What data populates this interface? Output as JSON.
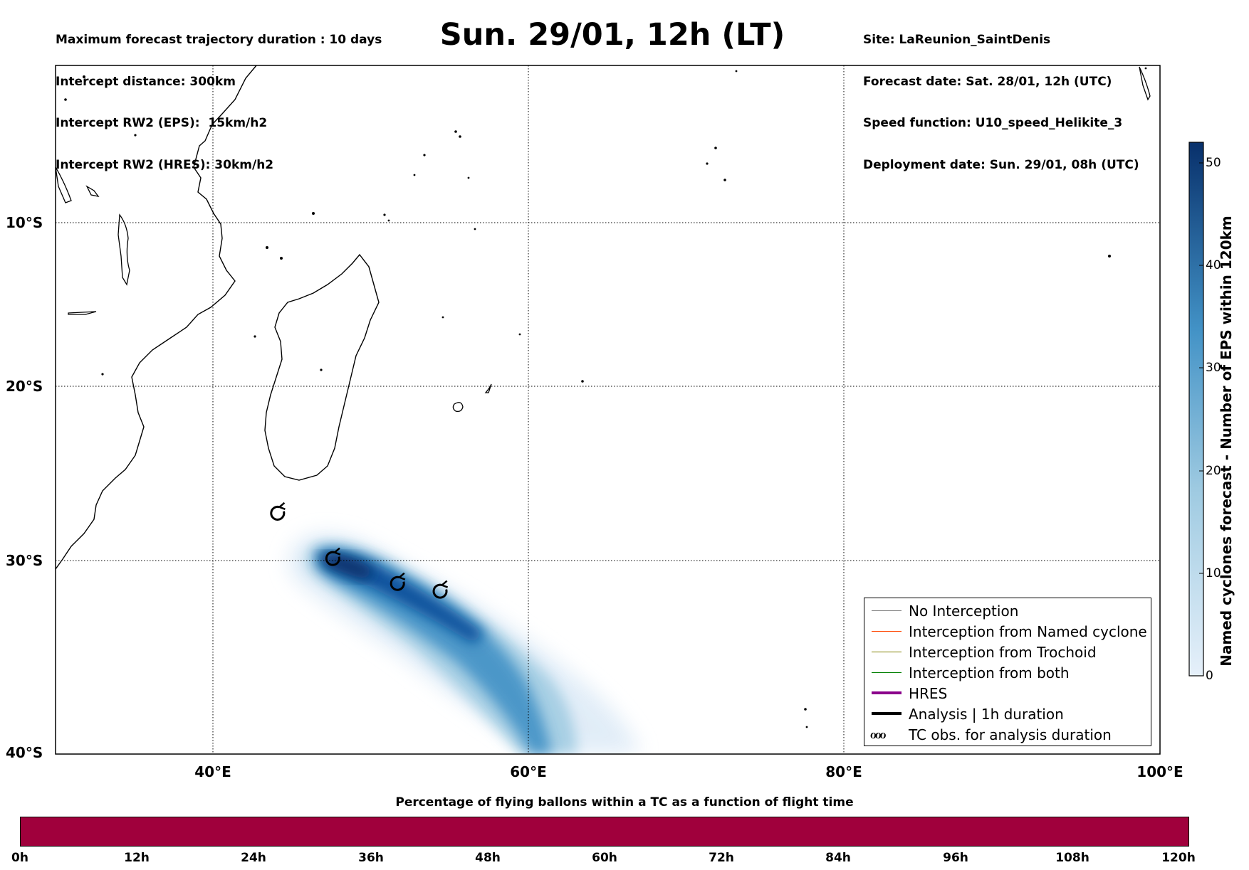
{
  "header_left": {
    "line1": "Maximum forecast trajectory duration : 10 days",
    "line2": "Intercept distance: 300km",
    "line3": "Intercept RW2 (EPS):  15km/h2",
    "line4": "Intercept RW2 (HRES): 30km/h2"
  },
  "title": "Sun. 29/01, 12h (LT)",
  "header_right": {
    "line1": "Site: LaReunion_SaintDenis",
    "line2": "Forecast date: Sat. 28/01, 12h (UTC)",
    "line3": "Speed function: U10_speed_Helikite_3",
    "line4": "Deployment date: Sun. 29/01, 08h (UTC)"
  },
  "map": {
    "lon_range": [
      30,
      100
    ],
    "lat_range": [
      -40,
      0
    ],
    "x_ticks": [
      "40°E",
      "60°E",
      "80°E",
      "100°E"
    ],
    "y_ticks": [
      "10°S",
      "20°S",
      "30°S",
      "40°S"
    ],
    "grid": true,
    "tc_observations": [
      {
        "lon": 44.1,
        "lat": -27.3
      },
      {
        "lon": 47.6,
        "lat": -29.9
      },
      {
        "lon": 51.7,
        "lat": -31.2
      },
      {
        "lon": 54.4,
        "lat": -31.6
      }
    ],
    "eps_density_track": [
      {
        "lon": 47.0,
        "lat": -29.9,
        "value": 52
      },
      {
        "lon": 50.5,
        "lat": -31.3,
        "value": 48
      },
      {
        "lon": 54.0,
        "lat": -32.6,
        "value": 44
      },
      {
        "lon": 57.0,
        "lat": -34.2,
        "value": 38
      },
      {
        "lon": 59.5,
        "lat": -36.5,
        "value": 30
      },
      {
        "lon": 61.5,
        "lat": -39.5,
        "value": 22
      }
    ]
  },
  "legend": {
    "items": [
      {
        "label": "No Interception",
        "color": "#808080",
        "width": 1.5
      },
      {
        "label": "Interception from Named cyclone",
        "color": "#ff4500",
        "width": 1.5
      },
      {
        "label": "Interception from Trochoid",
        "color": "#808000",
        "width": 1.5
      },
      {
        "label": "Interception from both",
        "color": "#008000",
        "width": 1.5
      },
      {
        "label": "HRES",
        "color": "#8b008b",
        "width": 4
      },
      {
        "label": "Analysis | 1h duration",
        "color": "#000000",
        "width": 4
      }
    ],
    "tc_label": "TC obs. for analysis duration",
    "tc_symbol": "ℴℴℴ"
  },
  "colorbar": {
    "label": "Named cyclones forecast - Number of EPS within 120km",
    "ticks": [
      "0",
      "10",
      "20",
      "30",
      "40",
      "50"
    ],
    "min": 0,
    "max": 52,
    "color_low": "#e6f0fa",
    "color_high": "#08306b"
  },
  "percentage_bar": {
    "title": "Percentage of flying ballons within a TC as a function of flight time",
    "color": "#a0003c",
    "ticks": [
      "0h",
      "12h",
      "24h",
      "36h",
      "48h",
      "60h",
      "72h",
      "84h",
      "96h",
      "108h",
      "120h"
    ]
  }
}
